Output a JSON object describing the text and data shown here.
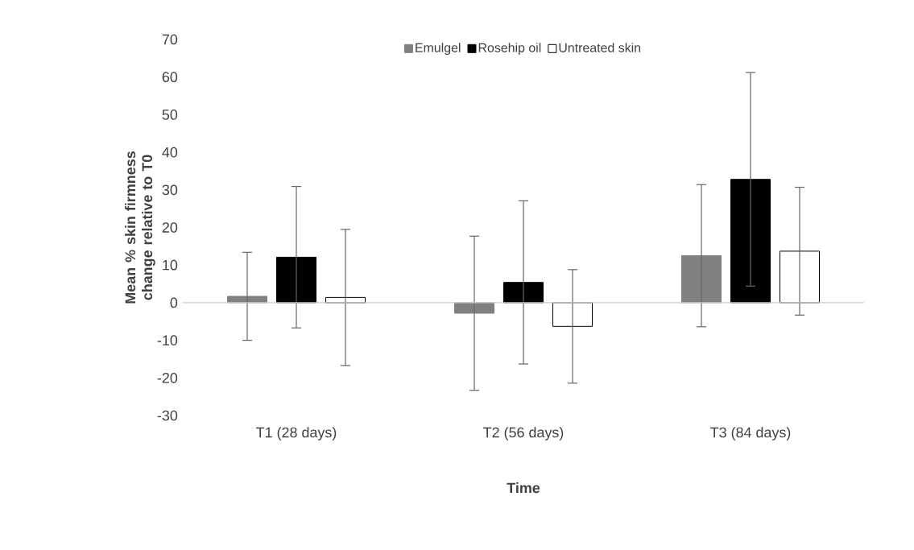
{
  "chart_data": {
    "type": "bar",
    "xlabel": "Time",
    "ylabel": "Mean  % skin firmness change relative to T0",
    "categories": [
      "T1 (28 days)",
      "T2 (56 days)",
      "T3 (84 days)"
    ],
    "series": [
      {
        "name": "Emulgel",
        "color": "#808080",
        "values": [
          1.7,
          -2.8,
          12.5
        ],
        "errors": [
          11.7,
          20.5,
          18.9
        ]
      },
      {
        "name": "Rosehip oil",
        "color": "#000000",
        "values": [
          12.1,
          5.4,
          32.8
        ],
        "errors": [
          18.8,
          21.7,
          28.4
        ]
      },
      {
        "name": "Untreated skin",
        "color": "#ffffff",
        "values": [
          1.4,
          -6.3,
          13.7
        ],
        "errors": [
          18.1,
          15.1,
          17.0
        ]
      }
    ],
    "ylim": [
      -30,
      70
    ],
    "yticks": [
      -30,
      -20,
      -10,
      0,
      10,
      20,
      30,
      40,
      50,
      60,
      70
    ],
    "legend": "top"
  }
}
